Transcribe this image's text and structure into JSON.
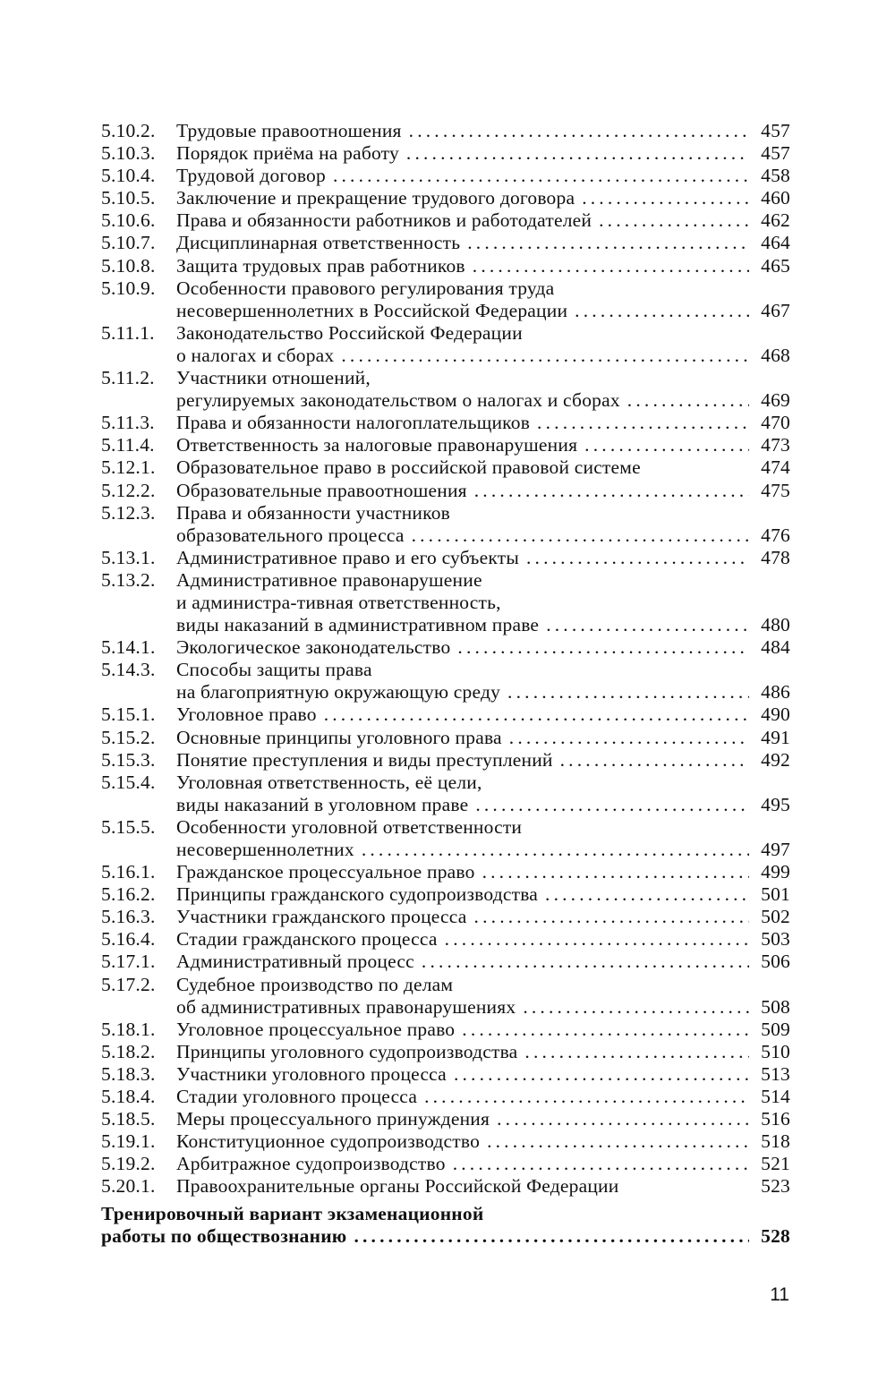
{
  "toc": {
    "entries": [
      {
        "num": "5.10.2.",
        "lines": [
          "Трудовые правоотношения"
        ],
        "page": "457",
        "dots": true
      },
      {
        "num": "5.10.3.",
        "lines": [
          "Порядок приёма на работу"
        ],
        "page": "457",
        "dots": true
      },
      {
        "num": "5.10.4.",
        "lines": [
          "Трудовой договор"
        ],
        "page": "458",
        "dots": true
      },
      {
        "num": "5.10.5.",
        "lines": [
          "Заключение и прекращение трудового договора"
        ],
        "page": "460",
        "dots": true
      },
      {
        "num": "5.10.6.",
        "lines": [
          "Права и обязанности работников и работодателей"
        ],
        "page": "462",
        "dots": true
      },
      {
        "num": "5.10.7.",
        "lines": [
          "Дисциплинарная ответственность"
        ],
        "page": "464",
        "dots": true
      },
      {
        "num": "5.10.8.",
        "lines": [
          "Защита трудовых прав работников"
        ],
        "page": "465",
        "dots": true
      },
      {
        "num": "5.10.9.",
        "lines": [
          "Особенности правового регулирования труда",
          "несовершеннолетних в Российской Федерации"
        ],
        "page": "467",
        "dots": true
      },
      {
        "num": "5.11.1.",
        "lines": [
          "Законодательство Российской Федерации",
          "о налогах и сборах"
        ],
        "page": "468",
        "dots": true
      },
      {
        "num": "5.11.2.",
        "lines": [
          "Участники отношений,",
          "регулируемых законодательством о налогах и сборах"
        ],
        "page": "469",
        "dots": true
      },
      {
        "num": "5.11.3.",
        "lines": [
          "Права и обязанности налогоплательщиков"
        ],
        "page": "470",
        "dots": true
      },
      {
        "num": "5.11.4.",
        "lines": [
          "Ответственность за налоговые правонарушения"
        ],
        "page": "473",
        "dots": true
      },
      {
        "num": "5.12.1.",
        "lines": [
          "Образовательное право в российской правовой системе"
        ],
        "page": "474",
        "dots": false
      },
      {
        "num": "5.12.2.",
        "lines": [
          "Образовательные правоотношения"
        ],
        "page": "475",
        "dots": true
      },
      {
        "num": "5.12.3.",
        "lines": [
          "Права и обязанности участников",
          "образовательного процесса"
        ],
        "page": "476",
        "dots": true
      },
      {
        "num": "5.13.1.",
        "lines": [
          "Административное право и его субъекты"
        ],
        "page": "478",
        "dots": true
      },
      {
        "num": "5.13.2.",
        "lines": [
          "Административное правонарушение",
          "и администра-тивная ответственность,",
          "виды наказаний в административном праве"
        ],
        "page": "480",
        "dots": true
      },
      {
        "num": "5.14.1.",
        "lines": [
          "Экологическое законодательство"
        ],
        "page": "484",
        "dots": true
      },
      {
        "num": "5.14.3.",
        "lines": [
          "Способы защиты права",
          "на благоприятную окружающую среду"
        ],
        "page": "486",
        "dots": true
      },
      {
        "num": "5.15.1.",
        "lines": [
          "Уголовное право"
        ],
        "page": "490",
        "dots": true
      },
      {
        "num": "5.15.2.",
        "lines": [
          "Основные принципы уголовного права"
        ],
        "page": "491",
        "dots": true
      },
      {
        "num": "5.15.3.",
        "lines": [
          "Понятие преступления и виды преступлений"
        ],
        "page": "492",
        "dots": true
      },
      {
        "num": "5.15.4.",
        "lines": [
          "Уголовная ответственность, её цели,",
          "виды наказаний в уголовном праве"
        ],
        "page": "495",
        "dots": true
      },
      {
        "num": "5.15.5.",
        "lines": [
          "Особенности уголовной ответственности",
          "несовершеннолетних"
        ],
        "page": "497",
        "dots": true
      },
      {
        "num": "5.16.1.",
        "lines": [
          "Гражданское процессуальное право"
        ],
        "page": "499",
        "dots": true
      },
      {
        "num": "5.16.2.",
        "lines": [
          "Принципы гражданского судопроизводства"
        ],
        "page": "501",
        "dots": true
      },
      {
        "num": "5.16.3.",
        "lines": [
          "Участники гражданского процесса"
        ],
        "page": "502",
        "dots": true
      },
      {
        "num": "5.16.4.",
        "lines": [
          "Стадии гражданского процесса"
        ],
        "page": "503",
        "dots": true
      },
      {
        "num": "5.17.1.",
        "lines": [
          "Административный процесс"
        ],
        "page": "506",
        "dots": true
      },
      {
        "num": "5.17.2.",
        "lines": [
          "Судебное производство по делам",
          "об административных правонарушениях"
        ],
        "page": "508",
        "dots": true
      },
      {
        "num": "5.18.1.",
        "lines": [
          "Уголовное процессуальное право"
        ],
        "page": "509",
        "dots": true
      },
      {
        "num": "5.18.2.",
        "lines": [
          "Принципы уголовного судопроизводства"
        ],
        "page": "510",
        "dots": true
      },
      {
        "num": "5.18.3.",
        "lines": [
          "Участники уголовного процесса"
        ],
        "page": "513",
        "dots": true
      },
      {
        "num": "5.18.4.",
        "lines": [
          "Стадии уголовного процесса"
        ],
        "page": "514",
        "dots": true
      },
      {
        "num": "5.18.5.",
        "lines": [
          "Меры процессуального принуждения"
        ],
        "page": "516",
        "dots": true
      },
      {
        "num": "5.19.1.",
        "lines": [
          "Конституционное судопроизводство"
        ],
        "page": "518",
        "dots": true
      },
      {
        "num": "5.19.2.",
        "lines": [
          "Арбитражное судопроизводство"
        ],
        "page": "521",
        "dots": true
      },
      {
        "num": "5.20.1.",
        "lines": [
          "Правоохранительные органы Российской Федерации"
        ],
        "page": "523",
        "dots": false
      }
    ],
    "final": {
      "lines": [
        "Тренировочный вариант экзаменационной",
        "работы по обществознанию"
      ],
      "page": "528"
    }
  },
  "page_number": "11"
}
